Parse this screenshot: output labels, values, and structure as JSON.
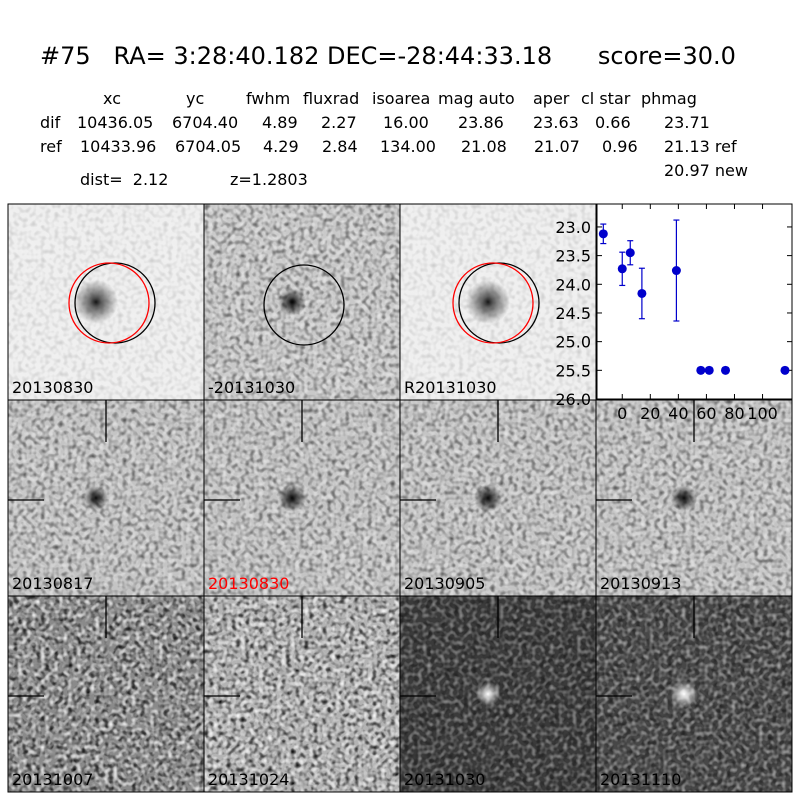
{
  "header": {
    "title": "#75   RA= 3:28:40.182 DEC=-28:44:33.18      score=30.0"
  },
  "table": {
    "columns": [
      "xc",
      "yc",
      "fwhm",
      "fluxrad",
      "isoarea",
      "mag auto",
      "aper",
      "cl star",
      "phmag"
    ],
    "rows": [
      [
        "dif",
        "10436.05",
        "6704.40",
        "4.89",
        "2.27",
        "16.00",
        "23.86",
        "23.63",
        "0.66",
        "23.71"
      ],
      [
        "ref",
        "10433.96",
        "6704.05",
        "4.29",
        "2.84",
        "134.00",
        "21.08",
        "21.07",
        "0.96",
        "21.13 ref"
      ]
    ],
    "extra": "20.97 new"
  },
  "info": {
    "dist": "dist=  2.12",
    "z": "z=1.2803"
  },
  "stamps": [
    {
      "label": "20130830",
      "label_color": "#000000"
    },
    {
      "label": "-20131030",
      "label_color": "#000000"
    },
    {
      "label": "R20131030",
      "label_color": "#000000"
    },
    {
      "label": "20130817",
      "label_color": "#000000"
    },
    {
      "label": "20130830",
      "label_color": "#ff0000"
    },
    {
      "label": "20130905",
      "label_color": "#000000"
    },
    {
      "label": "20130913",
      "label_color": "#000000"
    },
    {
      "label": "20131007",
      "label_color": "#000000"
    },
    {
      "label": "20131024",
      "label_color": "#000000"
    },
    {
      "label": "20131030",
      "label_color": "#000000"
    },
    {
      "label": "20131110",
      "label_color": "#000000"
    }
  ],
  "chart_data": {
    "type": "scatter",
    "x": [
      -13.5,
      0,
      5.7,
      14,
      38.6,
      56,
      62,
      73.6,
      116
    ],
    "series": [
      {
        "color": "#0000cc",
        "values": [
          23.12,
          23.73,
          23.45,
          24.16,
          23.76,
          25.5,
          25.5,
          25.5,
          25.5
        ],
        "errors": [
          0.17,
          0.29,
          0.21,
          0.44,
          0.88,
          0.05,
          0.05,
          0.05,
          0.05
        ]
      }
    ],
    "xlim": [
      -18,
      121
    ],
    "xticks": [
      0,
      20,
      40,
      60,
      80,
      100
    ],
    "ylim": [
      26.0,
      22.6
    ],
    "yticks": [
      {
        "value": 23,
        "label": "23.0"
      },
      {
        "value": 23.5,
        "label": "23.5"
      },
      {
        "value": 24,
        "label": "24.0"
      },
      {
        "value": 24.5,
        "label": "24.5"
      },
      {
        "value": 25,
        "label": "25.0"
      },
      {
        "value": 25.5,
        "label": "25.5"
      },
      {
        "value": 26,
        "label": "26.0"
      }
    ]
  }
}
